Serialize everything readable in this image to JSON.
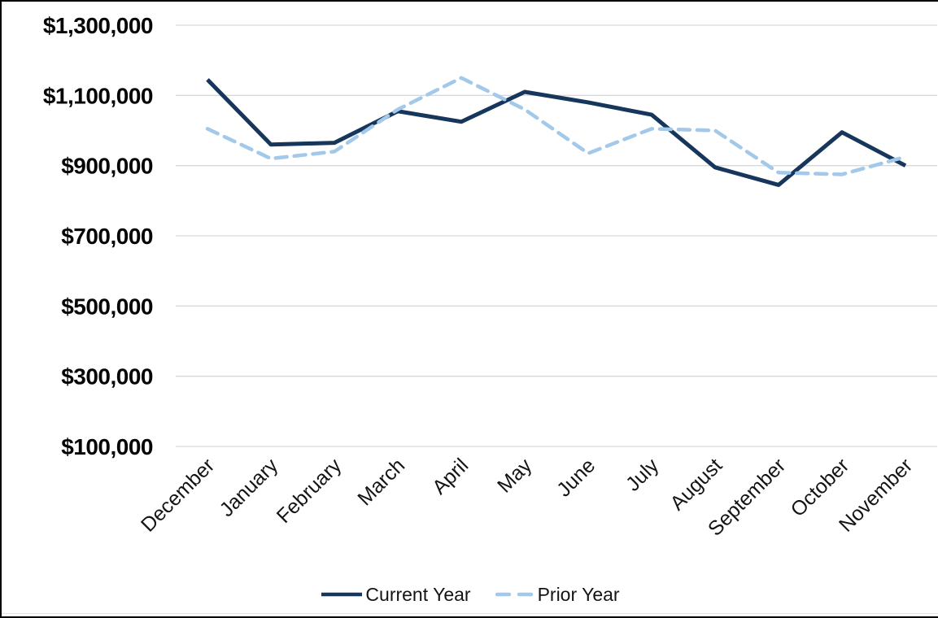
{
  "chart_data": {
    "type": "line",
    "title": "",
    "categories": [
      "December",
      "January",
      "February",
      "March",
      "April",
      "May",
      "June",
      "July",
      "August",
      "September",
      "October",
      "November"
    ],
    "series": [
      {
        "name": "Current Year",
        "style": "solid",
        "color": "#16365C",
        "values": [
          1145000,
          960000,
          965000,
          1055000,
          1025000,
          1110000,
          1080000,
          1045000,
          895000,
          845000,
          995000,
          900000
        ]
      },
      {
        "name": "Prior Year",
        "style": "dashed",
        "color": "#A2C8EA",
        "values": [
          1005000,
          920000,
          940000,
          1060000,
          1150000,
          1060000,
          935000,
          1005000,
          1000000,
          880000,
          875000,
          925000
        ]
      }
    ],
    "y_axis": {
      "min": 100000,
      "max": 1300000,
      "step": 200000,
      "gridlines": true,
      "gridline_color": "#D9D9D9",
      "ticks": [
        {
          "label": "$1,300,000",
          "value": 1300000
        },
        {
          "label": "$1,100,000",
          "value": 1100000
        },
        {
          "label": "$900,000",
          "value": 900000
        },
        {
          "label": "$700,000",
          "value": 700000
        },
        {
          "label": "$500,000",
          "value": 500000
        },
        {
          "label": "$300,000",
          "value": 300000
        },
        {
          "label": "$100,000",
          "value": 100000
        }
      ]
    },
    "x_axis": {
      "label_rotation_deg": -45
    },
    "legend_position": "bottom"
  }
}
